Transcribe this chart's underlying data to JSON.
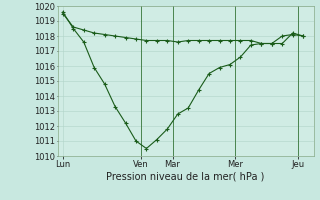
{
  "background_color": "#c8e8e0",
  "plot_bg_color": "#d0ece4",
  "grid_color": "#b0d4c8",
  "line_color": "#1a5c1a",
  "vline_color": "#2d6e2d",
  "title": "Pression niveau de la mer( hPa )",
  "ylim": [
    1010,
    1020
  ],
  "yticks": [
    1010,
    1011,
    1012,
    1013,
    1014,
    1015,
    1016,
    1017,
    1018,
    1019,
    1020
  ],
  "xtick_labels": [
    "Lun",
    "Ven",
    "Mar",
    "Mer",
    "Jeu"
  ],
  "xtick_positions": [
    0,
    7.5,
    10.5,
    16.5,
    22.5
  ],
  "xlim": [
    -0.5,
    24.0
  ],
  "series1_x": [
    0,
    1,
    2,
    3,
    4,
    5,
    6,
    7,
    8,
    9,
    10,
    11,
    12,
    13,
    14,
    15,
    16,
    17,
    18,
    19,
    20,
    21,
    22,
    23
  ],
  "series1_y": [
    1019.5,
    1018.6,
    1018.4,
    1018.2,
    1018.1,
    1018.0,
    1017.9,
    1017.8,
    1017.7,
    1017.7,
    1017.7,
    1017.6,
    1017.7,
    1017.7,
    1017.7,
    1017.7,
    1017.7,
    1017.7,
    1017.7,
    1017.5,
    1017.5,
    1018.0,
    1018.1,
    1018.0
  ],
  "series2_x": [
    0,
    1,
    2,
    3,
    4,
    5,
    6,
    7,
    8,
    9,
    10,
    11,
    12,
    13,
    14,
    15,
    16,
    17,
    18,
    19,
    20,
    21,
    22,
    23
  ],
  "series2_y": [
    1019.6,
    1018.5,
    1017.6,
    1015.9,
    1014.8,
    1013.3,
    1012.2,
    1011.0,
    1010.5,
    1011.1,
    1011.8,
    1012.8,
    1013.2,
    1014.4,
    1015.5,
    1015.9,
    1016.1,
    1016.6,
    1017.4,
    1017.5,
    1017.5,
    1017.5,
    1018.2,
    1018.0
  ],
  "vline_positions": [
    7.5,
    10.5,
    16.5,
    22.5
  ],
  "title_fontsize": 7,
  "tick_fontsize": 6,
  "figsize": [
    3.2,
    2.0
  ],
  "dpi": 100
}
